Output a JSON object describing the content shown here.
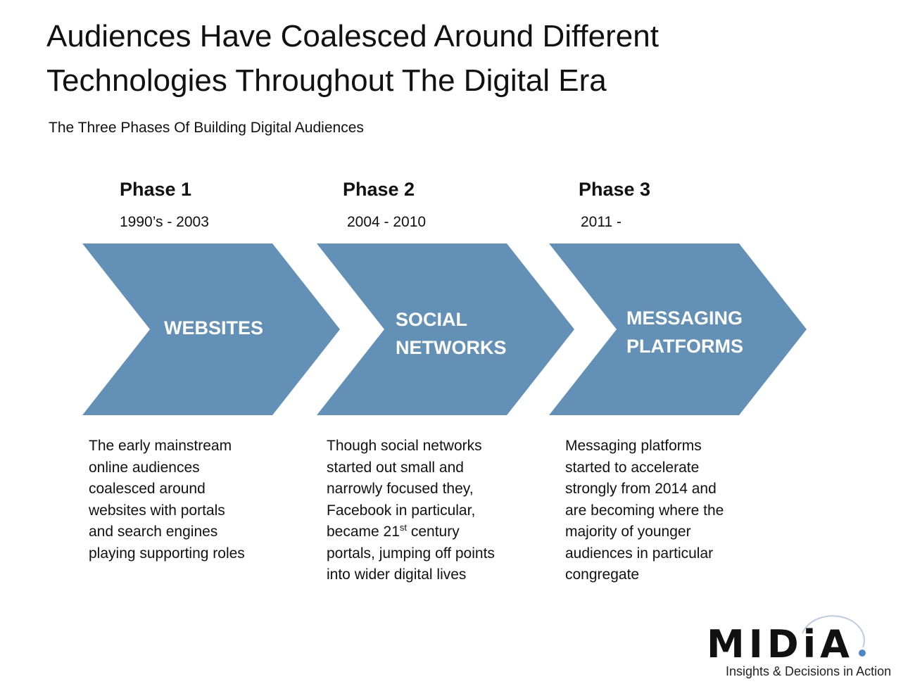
{
  "title": {
    "line1": "Audiences Have Coalesced Around Different",
    "line2": "Technologies Throughout The Digital Era"
  },
  "subtitle": "The Three Phases Of Building Digital Audiences",
  "colors": {
    "chevron": "#6390b6",
    "logo_accent": "#4f86c6"
  },
  "phases": [
    {
      "name": "Phase 1",
      "years": "1990’s - 2003",
      "label_lines": [
        "WEBSITES"
      ],
      "description": {
        "line1": "The early mainstream",
        "line2": "online audiences",
        "line3": "coalesced around",
        "line4": "websites with portals",
        "line5": "and search engines",
        "line6": "playing supporting roles"
      }
    },
    {
      "name": "Phase 2",
      "years": "2004 - 2010",
      "label_lines": [
        "SOCIAL",
        "NETWORKS"
      ],
      "description": {
        "line1": "Though social networks",
        "line2": "started out small and",
        "line3": "narrowly focused they,",
        "line4": "Facebook in particular,",
        "line5_pre": "became 21",
        "line5_sup": "st",
        "line5_post": " century",
        "line6": "portals, jumping off points",
        "line7": "into wider digital lives"
      }
    },
    {
      "name": "Phase 3",
      "years": "2011 -",
      "label_lines": [
        "MESSAGING",
        "PLATFORMS"
      ],
      "description": {
        "line1": "Messaging platforms",
        "line2": "started to accelerate",
        "line3": "strongly from 2014 and",
        "line4": "are becoming where the",
        "line5": "majority of younger",
        "line6": "audiences in particular",
        "line7": "congregate"
      }
    }
  ],
  "logo": {
    "word": "MIDiA",
    "tagline": "Insights & Decisions in Action"
  }
}
